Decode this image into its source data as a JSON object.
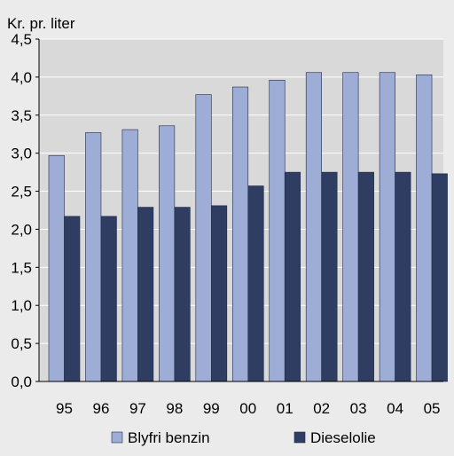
{
  "chart_data": {
    "type": "bar",
    "title": "",
    "ylabel": "Kr. pr. liter",
    "xlabel": "",
    "categories": [
      "95",
      "96",
      "97",
      "98",
      "99",
      "00",
      "01",
      "02",
      "03",
      "04",
      "05"
    ],
    "series": [
      {
        "name": "Blyfri benzin",
        "color": "#9eadd6",
        "values": [
          2.97,
          3.27,
          3.31,
          3.36,
          3.77,
          3.87,
          3.96,
          4.06,
          4.06,
          4.06,
          4.03
        ]
      },
      {
        "name": "Dieselolie",
        "color": "#2f3d62",
        "values": [
          2.17,
          2.17,
          2.29,
          2.29,
          2.31,
          2.57,
          2.75,
          2.75,
          2.75,
          2.75,
          2.73
        ]
      }
    ],
    "ylim": [
      0,
      4.5
    ],
    "yticks": [
      "0,0",
      "0,5",
      "1,0",
      "1,5",
      "2,0",
      "2,5",
      "3,0",
      "3,5",
      "4,0",
      "4,5"
    ],
    "grid": true,
    "legend_position": "bottom",
    "plot_background": "#d9d9d9",
    "frame_background": "#ebebeb",
    "gridline_color": "#ffffff"
  }
}
